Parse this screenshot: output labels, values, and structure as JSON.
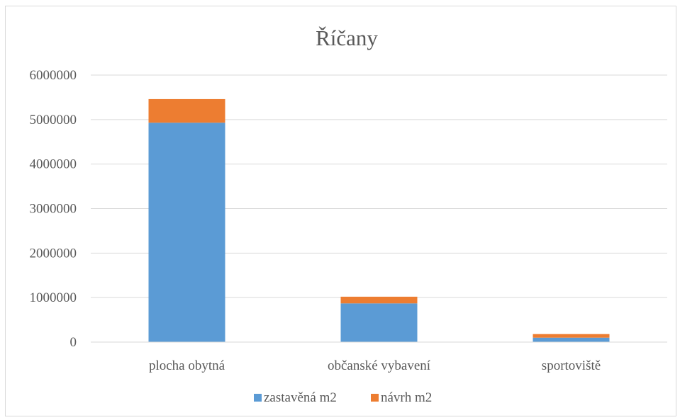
{
  "chart_data": {
    "type": "bar",
    "stacked": true,
    "title": "Říčany",
    "xlabel": "",
    "ylabel": "",
    "categories": [
      "plocha obytná",
      "občanské vybavení",
      "sportoviště"
    ],
    "series": [
      {
        "name": "zastavěná m2",
        "color": "#5b9bd5",
        "values": [
          4930000,
          870000,
          100000
        ]
      },
      {
        "name": "návrh m2",
        "color": "#ed7d31",
        "values": [
          530000,
          150000,
          80000
        ]
      }
    ],
    "ylim": [
      0,
      6000000
    ],
    "yticks": [
      "0",
      "1000000",
      "2000000",
      "3000000",
      "4000000",
      "5000000",
      "6000000"
    ],
    "grid": true,
    "legend_position": "bottom"
  }
}
